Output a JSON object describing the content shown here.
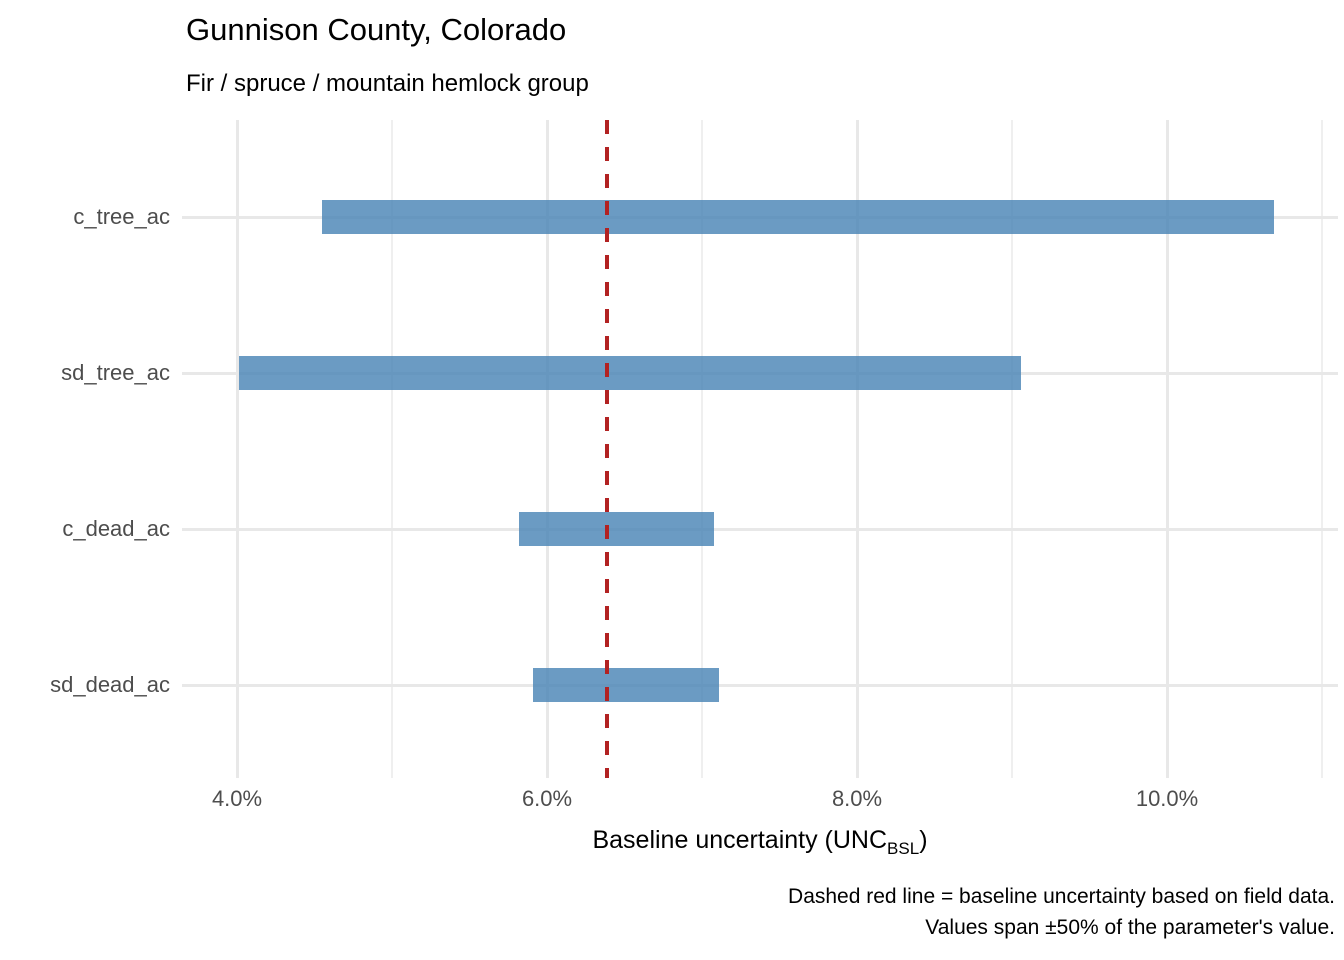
{
  "header": {
    "title": "Gunnison County, Colorado",
    "subtitle": "Fir / spruce / mountain hemlock group"
  },
  "x_axis_title": {
    "prefix": "Baseline uncertainty (UNC",
    "subscript": "BSL",
    "suffix": ")"
  },
  "caption": {
    "line1": "Dashed red line = baseline uncertainty based on field data.",
    "line2": "Values span ±50% of the parameter's value."
  },
  "chart_data": {
    "type": "bar",
    "orientation": "horizontal_range",
    "title": "Gunnison County, Colorado",
    "subtitle": "Fir / spruce / mountain hemlock group",
    "xlabel": "Baseline uncertainty (UNC_BSL)",
    "ylabel": "",
    "categories": [
      "c_tree_ac",
      "sd_tree_ac",
      "c_dead_ac",
      "sd_dead_ac"
    ],
    "series": [
      {
        "name": "uncertainty_range_pct",
        "low": [
          4.55,
          4.01,
          5.82,
          5.91
        ],
        "high": [
          10.69,
          9.06,
          7.08,
          7.11
        ]
      }
    ],
    "baseline_value_pct": 6.39,
    "xlim": [
      3.645,
      11.103
    ],
    "x_major_ticks": [
      4,
      6,
      8,
      10
    ],
    "x_tick_labels": [
      "4.0%",
      "6.0%",
      "8.0%",
      "10.0%"
    ],
    "x_minor_ticks": [
      5,
      7,
      9,
      11
    ],
    "grid": "major_and_minor",
    "legend": "none",
    "colors": {
      "bar": "rgba(70,130,180,0.8)",
      "baseline": "#B22222",
      "grid_major": "#E8E8E8",
      "grid_minor": "#EFEFEF",
      "tick_text": "#4D4D4D"
    }
  }
}
